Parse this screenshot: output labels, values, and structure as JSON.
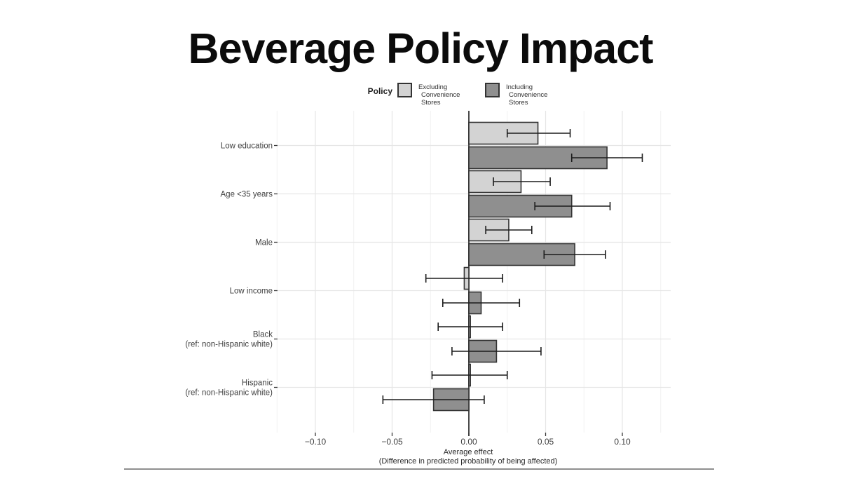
{
  "title": "Beverage Policy Impact",
  "colors": {
    "background": "#ffffff",
    "bar_light": "#d3d3d3",
    "bar_dark": "#8f8f8f",
    "bar_border": "#333333",
    "error_bar": "#1c1c1c",
    "grid_major": "#e6e6e6",
    "grid_minor": "#f1f1f1",
    "zero_line": "#4a4a4a",
    "axis_text": "#404040",
    "tick_mark": "#3a3a3a",
    "footer_divider": "#8f8f8f"
  },
  "chart_data": {
    "type": "bar",
    "orientation": "horizontal",
    "legend_title": "Policy",
    "xlabel_line1": "Average effect",
    "xlabel_line2": "(Difference in predicted probability of being affected)",
    "x_ticks": [
      -0.1,
      -0.05,
      0.0,
      0.05,
      0.1
    ],
    "x_tick_labels": [
      "−0.10",
      "−0.05",
      "0.00",
      "0.05",
      "0.10"
    ],
    "x_gridlines_major": [
      -0.1,
      -0.05,
      0.05,
      0.1
    ],
    "x_gridlines_minor": [
      -0.125,
      -0.075,
      -0.025,
      0.025,
      0.075,
      0.125
    ],
    "xlim": [
      -0.128,
      0.132
    ],
    "grid": "on",
    "legend_position": "top",
    "categories": [
      {
        "label_lines": [
          "Low education"
        ]
      },
      {
        "label_lines": [
          "Age <35 years"
        ]
      },
      {
        "label_lines": [
          "Male"
        ]
      },
      {
        "label_lines": [
          "Low income"
        ]
      },
      {
        "label_lines": [
          "Black",
          "(ref: non-Hispanic white)"
        ]
      },
      {
        "label_lines": [
          "Hispanic",
          "(ref: non-Hispanic white)"
        ]
      }
    ],
    "series": [
      {
        "name": "Excluding Convenience Stores",
        "label_lines": [
          "Excluding",
          "Convenience Stores"
        ],
        "color": "#d3d3d3",
        "values": [
          0.045,
          0.034,
          0.026,
          -0.003,
          0.001,
          0.001
        ],
        "ci_low": [
          0.025,
          0.016,
          0.011,
          -0.028,
          -0.02,
          -0.024
        ],
        "ci_high": [
          0.066,
          0.053,
          0.041,
          0.022,
          0.022,
          0.025
        ]
      },
      {
        "name": "Including Convenience Stores",
        "label_lines": [
          "Including",
          "Convenience Stores"
        ],
        "color": "#8f8f8f",
        "values": [
          0.09,
          0.067,
          0.069,
          0.008,
          0.018,
          -0.023
        ],
        "ci_low": [
          0.067,
          0.043,
          0.049,
          -0.017,
          -0.011,
          -0.056
        ],
        "ci_high": [
          0.113,
          0.092,
          0.089,
          0.033,
          0.047,
          0.01
        ]
      }
    ]
  }
}
